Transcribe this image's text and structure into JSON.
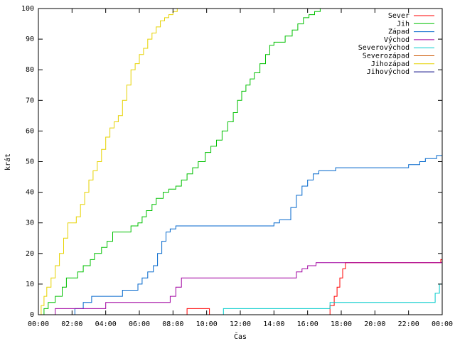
{
  "chart_data": {
    "type": "line",
    "title": "",
    "xlabel": "Čas",
    "ylabel": "krát",
    "xlim": [
      "00:00",
      "24:00"
    ],
    "ylim": [
      0,
      100
    ],
    "x_ticks": [
      "00:00",
      "02:00",
      "04:00",
      "06:00",
      "08:00",
      "10:00",
      "12:00",
      "14:00",
      "16:00",
      "18:00",
      "20:00",
      "22:00",
      "00:00"
    ],
    "y_ticks": [
      0,
      10,
      20,
      30,
      40,
      50,
      60,
      70,
      80,
      90,
      100
    ],
    "grid": false,
    "legend_position": "top-right",
    "series": [
      {
        "name": "Sever",
        "color": "#ff0000",
        "x": [
          "08:50",
          "08:50",
          "10:10",
          "10:10",
          "17:15",
          "17:20",
          "17:35",
          "17:45",
          "17:55",
          "18:05",
          "18:15",
          "23:40",
          "23:55",
          "24:00"
        ],
        "y": [
          0,
          2,
          2,
          0,
          0,
          3,
          6,
          9,
          12,
          15,
          17,
          17,
          18,
          19
        ]
      },
      {
        "name": "Jih",
        "color": "#00c000",
        "x": [
          "00:05",
          "00:20",
          "00:35",
          "01:00",
          "01:25",
          "01:40",
          "02:20",
          "02:40",
          "03:05",
          "03:20",
          "03:45",
          "04:05",
          "04:25",
          "04:45",
          "05:00",
          "05:30",
          "05:55",
          "06:10",
          "06:25",
          "06:45",
          "07:00",
          "07:25",
          "07:45",
          "08:10",
          "08:30",
          "08:50",
          "09:10",
          "09:30",
          "09:55",
          "10:15",
          "10:35",
          "10:55",
          "11:15",
          "11:35",
          "11:50",
          "12:05",
          "12:20",
          "12:35",
          "12:50",
          "13:10",
          "13:30",
          "13:45",
          "14:00",
          "14:20",
          "14:40",
          "15:05",
          "15:25",
          "15:45",
          "16:05",
          "16:25",
          "16:45",
          "17:10",
          "24:00"
        ],
        "y": [
          0,
          2,
          4,
          6,
          9,
          12,
          14,
          16,
          18,
          20,
          22,
          24,
          27,
          27,
          27,
          29,
          30,
          32,
          34,
          36,
          38,
          40,
          41,
          42,
          44,
          46,
          48,
          50,
          53,
          55,
          57,
          60,
          63,
          66,
          70,
          73,
          75,
          77,
          79,
          82,
          85,
          88,
          89,
          89,
          91,
          93,
          95,
          97,
          98,
          99,
          100,
          100,
          100
        ]
      },
      {
        "name": "Západ",
        "color": "#0066cc",
        "x": [
          "01:55",
          "02:10",
          "02:40",
          "03:10",
          "03:40",
          "04:10",
          "04:40",
          "05:00",
          "05:35",
          "05:55",
          "06:10",
          "06:30",
          "06:50",
          "07:05",
          "07:20",
          "07:35",
          "07:50",
          "08:10",
          "08:30",
          "08:50",
          "09:30",
          "10:30",
          "11:30",
          "12:30",
          "13:30",
          "14:00",
          "14:20",
          "14:40",
          "15:00",
          "15:20",
          "15:40",
          "16:00",
          "16:20",
          "16:40",
          "17:00",
          "17:20",
          "17:40",
          "18:00",
          "18:30",
          "19:00",
          "20:00",
          "21:00",
          "22:00",
          "22:40",
          "23:00",
          "23:20",
          "23:40",
          "24:00"
        ],
        "y": [
          0,
          2,
          4,
          6,
          6,
          6,
          6,
          8,
          8,
          10,
          12,
          14,
          16,
          20,
          24,
          27,
          28,
          29,
          29,
          29,
          29,
          29,
          29,
          29,
          29,
          30,
          31,
          31,
          35,
          39,
          42,
          44,
          46,
          47,
          47,
          47,
          48,
          48,
          48,
          48,
          48,
          48,
          49,
          50,
          51,
          51,
          52,
          52
        ]
      },
      {
        "name": "Východ",
        "color": "#a000a0",
        "x": [
          "00:40",
          "01:00",
          "03:30",
          "04:00",
          "07:30",
          "07:50",
          "08:10",
          "08:30",
          "10:00",
          "12:00",
          "14:00",
          "15:00",
          "15:20",
          "15:40",
          "16:00",
          "16:30",
          "17:00",
          "20:00",
          "23:00",
          "24:00"
        ],
        "y": [
          0,
          2,
          2,
          4,
          4,
          6,
          9,
          12,
          12,
          12,
          12,
          12,
          14,
          15,
          16,
          17,
          17,
          17,
          17,
          17
        ]
      },
      {
        "name": "Severovýchod",
        "color": "#00cccc",
        "x": [
          "10:50",
          "11:00",
          "13:00",
          "15:00",
          "17:00",
          "17:20",
          "19:00",
          "21:00",
          "23:00",
          "23:20",
          "23:35",
          "23:50",
          "24:00"
        ],
        "y": [
          0,
          2,
          2,
          2,
          2,
          4,
          4,
          4,
          4,
          4,
          7,
          10,
          10
        ]
      },
      {
        "name": "Severozápad",
        "color": "#cc5500",
        "x": [
          "00:00",
          "24:00"
        ],
        "y": [
          0,
          0
        ]
      },
      {
        "name": "Jihozápad",
        "color": "#e6d200",
        "x": [
          "00:00",
          "00:10",
          "00:20",
          "00:30",
          "00:45",
          "01:00",
          "01:15",
          "01:30",
          "01:45",
          "02:00",
          "02:15",
          "02:30",
          "02:45",
          "03:00",
          "03:15",
          "03:30",
          "03:45",
          "04:00",
          "04:15",
          "04:30",
          "04:45",
          "05:00",
          "05:15",
          "05:30",
          "05:45",
          "06:00",
          "06:15",
          "06:30",
          "06:45",
          "07:00",
          "07:15",
          "07:30",
          "07:45",
          "08:00",
          "08:15",
          "08:30",
          "08:45",
          "24:00"
        ],
        "y": [
          0,
          3,
          6,
          9,
          12,
          16,
          20,
          25,
          30,
          30,
          32,
          36,
          40,
          44,
          47,
          50,
          54,
          58,
          61,
          63,
          65,
          70,
          75,
          80,
          82,
          85,
          87,
          90,
          92,
          94,
          96,
          97,
          98,
          99,
          100,
          100,
          100,
          100
        ]
      },
      {
        "name": "Jihovýchod",
        "color": "#000080",
        "x": [
          "00:00",
          "24:00"
        ],
        "y": [
          0,
          0
        ]
      }
    ]
  }
}
